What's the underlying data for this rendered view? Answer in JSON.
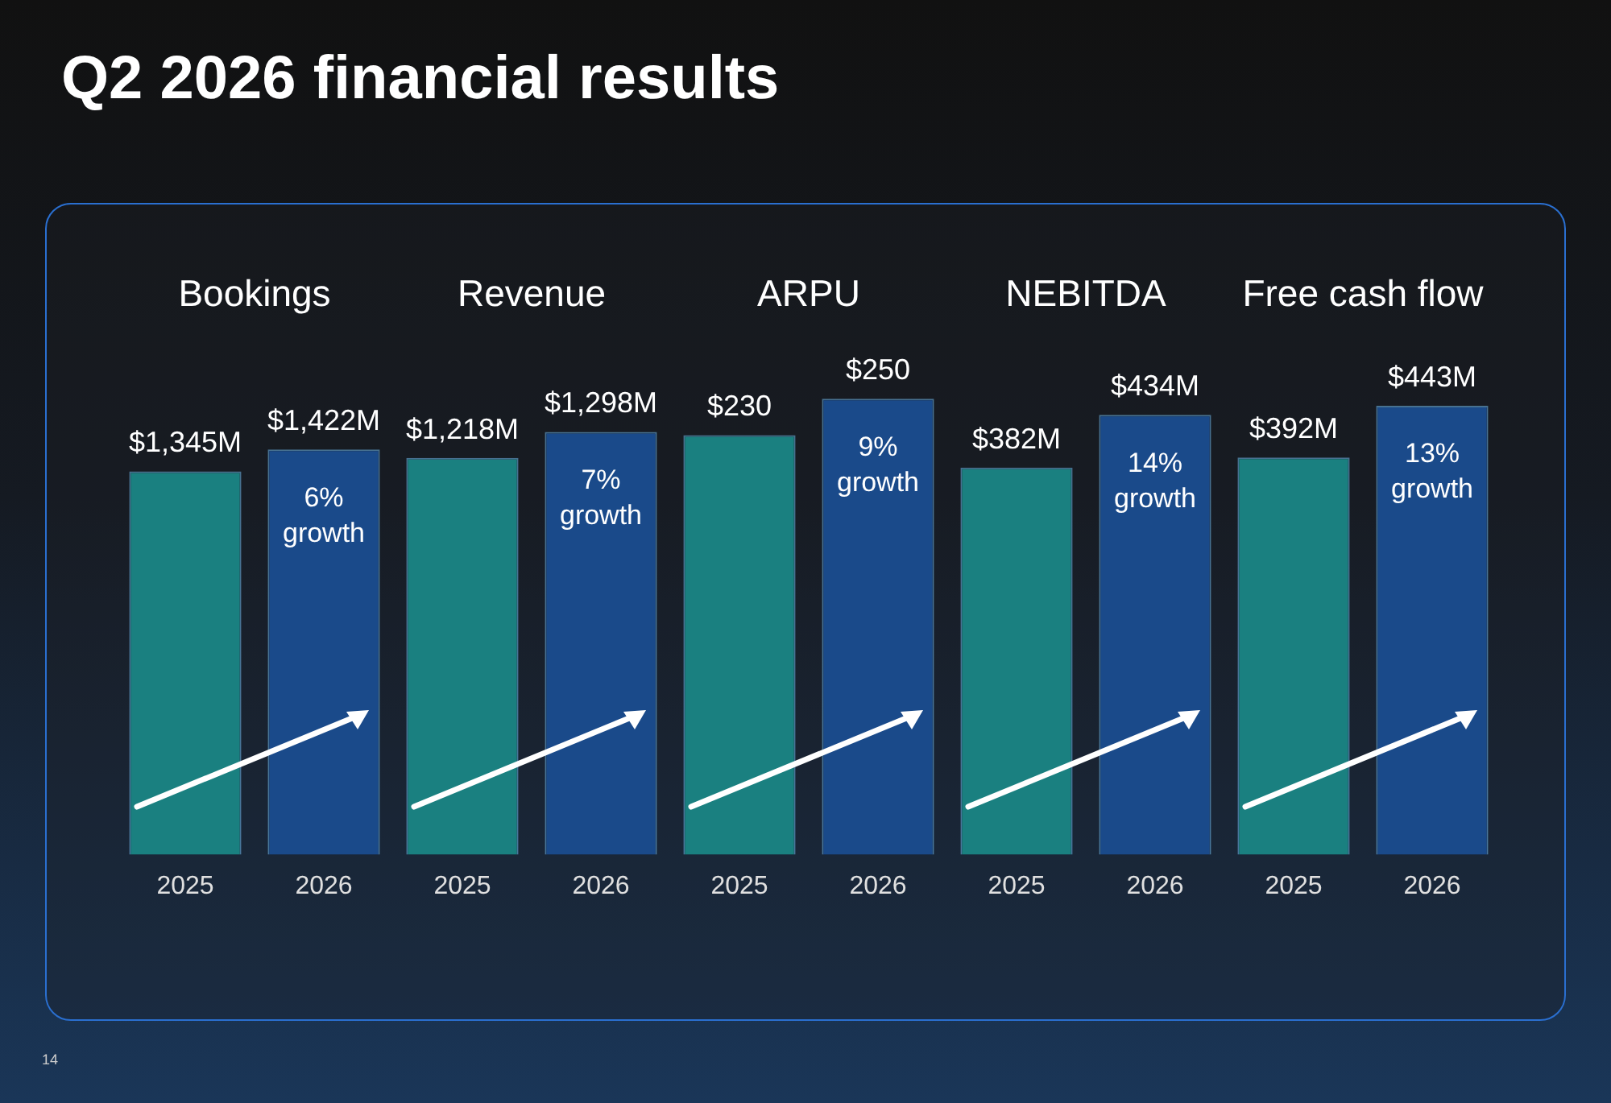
{
  "chart_data": [
    {
      "type": "other",
      "title": "Q2 2026 financial results",
      "annotations": [
        "14"
      ]
    },
    {
      "type": "bar",
      "title": "Bookings",
      "categories": [
        "2025",
        "2026"
      ],
      "values": [
        1345,
        1422
      ],
      "colors": [
        "#1a8080",
        "#1a4a8a"
      ],
      "value_labels": [
        "$1,345M",
        "$1,422M"
      ],
      "annotations": [
        "6% growth"
      ],
      "tick_labels": "x",
      "grid": false,
      "legend": false
    },
    {
      "type": "bar",
      "title": "Revenue",
      "categories": [
        "2025",
        "2026"
      ],
      "values": [
        1218,
        1298
      ],
      "colors": [
        "#1a8080",
        "#1a4a8a"
      ],
      "value_labels": [
        "$1,218M",
        "$1,298M"
      ],
      "annotations": [
        "7% growth"
      ],
      "tick_labels": "x",
      "grid": false,
      "legend": false
    },
    {
      "type": "bar",
      "title": "ARPU",
      "categories": [
        "2025",
        "2026"
      ],
      "values": [
        230,
        250
      ],
      "colors": [
        "#1a8080",
        "#1a4a8a"
      ],
      "value_labels": [
        "$230",
        "$250"
      ],
      "annotations": [
        "9% growth"
      ],
      "tick_labels": "x",
      "grid": false,
      "legend": false
    },
    {
      "type": "bar",
      "title": "NEBITDA",
      "categories": [
        "2025",
        "2026"
      ],
      "values": [
        382,
        434
      ],
      "colors": [
        "#1a8080",
        "#1a4a8a"
      ],
      "value_labels": [
        "$382M",
        "$434M"
      ],
      "annotations": [
        "14% growth"
      ],
      "tick_labels": "x",
      "grid": false,
      "legend": false
    },
    {
      "type": "bar",
      "title": "Free cash flow",
      "categories": [
        "2025",
        "2026"
      ],
      "values": [
        392,
        443
      ],
      "colors": [
        "#1a8080",
        "#1a4a8a"
      ],
      "value_labels": [
        "$392M",
        "$443M"
      ],
      "annotations": [
        "13% growth"
      ],
      "tick_labels": "x",
      "grid": false,
      "legend": false
    }
  ]
}
